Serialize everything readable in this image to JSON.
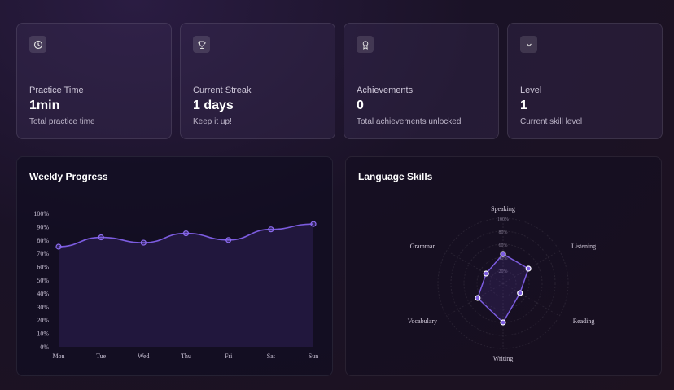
{
  "stats": [
    {
      "icon": "clock-icon",
      "label": "Practice Time",
      "value": "1min",
      "sub": "Total practice time"
    },
    {
      "icon": "trophy-icon",
      "label": "Current Streak",
      "value": "1 days",
      "sub": "Keep it up!"
    },
    {
      "icon": "award-icon",
      "label": "Achievements",
      "value": "0",
      "sub": "Total achievements unlocked"
    },
    {
      "icon": "chevron-down-icon",
      "label": "Level",
      "value": "1",
      "sub": "Current skill level"
    }
  ],
  "weekly": {
    "title": "Weekly Progress"
  },
  "skills": {
    "title": "Language Skills"
  },
  "chart_data": [
    {
      "type": "area",
      "categories": [
        "Mon",
        "Tue",
        "Wed",
        "Thu",
        "Fri",
        "Sat",
        "Sun"
      ],
      "values": [
        75,
        82,
        78,
        85,
        80,
        88,
        92
      ],
      "ylim": [
        0,
        100
      ],
      "yticks": [
        "0%",
        "10%",
        "20%",
        "30%",
        "40%",
        "50%",
        "60%",
        "70%",
        "80%",
        "90%",
        "100%"
      ],
      "color": "#7c5ce0"
    },
    {
      "type": "radar",
      "categories": [
        "Speaking",
        "Listening",
        "Reading",
        "Writing",
        "Vocabulary",
        "Grammar"
      ],
      "values": [
        45,
        45,
        30,
        60,
        45,
        30
      ],
      "rlim": [
        0,
        100
      ],
      "rticks": [
        "20%",
        "40%",
        "60%",
        "80%",
        "100%"
      ],
      "color": "#7c5ce0"
    }
  ]
}
